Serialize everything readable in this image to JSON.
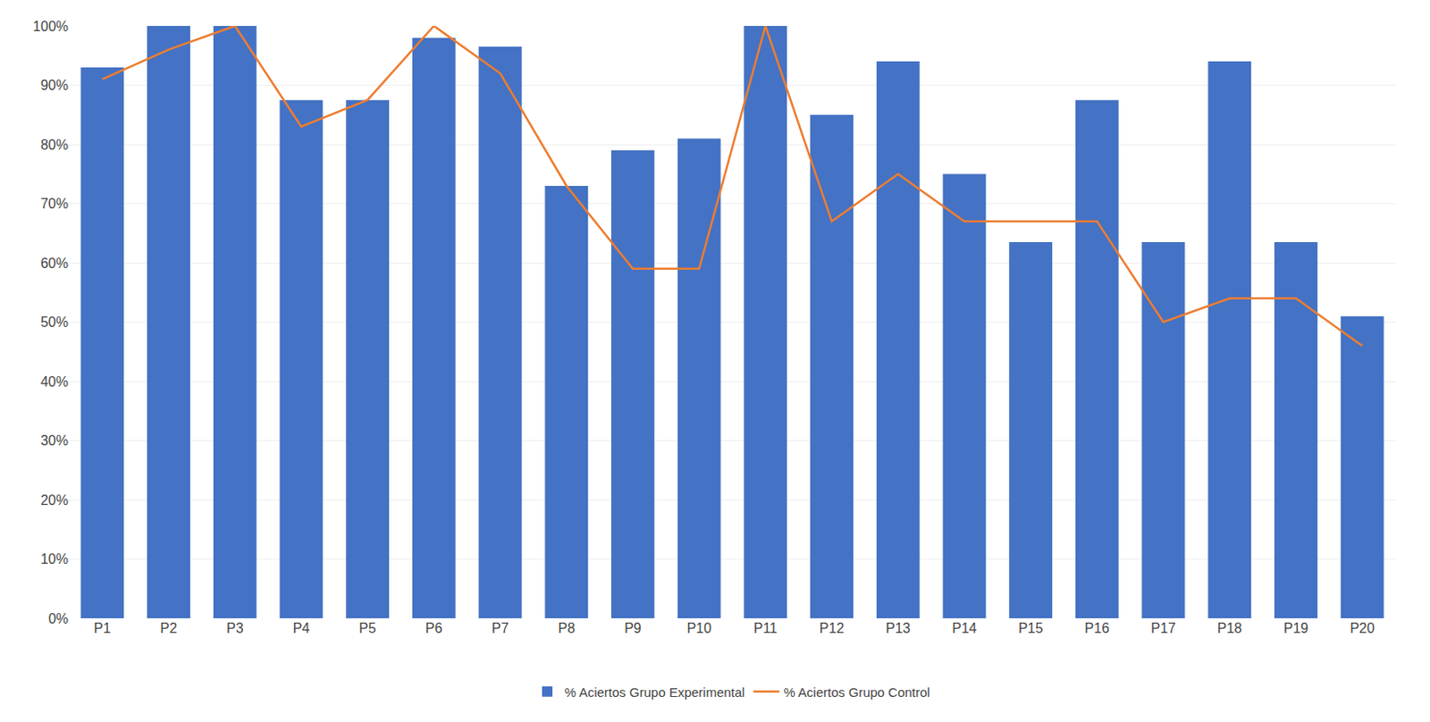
{
  "chart_data": {
    "type": "bar",
    "categories": [
      "P1",
      "P2",
      "P3",
      "P4",
      "P5",
      "P6",
      "P7",
      "P8",
      "P9",
      "P10",
      "P11",
      "P12",
      "P13",
      "P14",
      "P15",
      "P16",
      "P17",
      "P18",
      "P19",
      "P20"
    ],
    "series": [
      {
        "name": "% Aciertos Grupo Experimental",
        "type": "bar",
        "color": "#4472C4",
        "values": [
          0.93,
          1.0,
          1.0,
          0.875,
          0.875,
          0.98,
          0.965,
          0.73,
          0.79,
          0.81,
          1.0,
          0.85,
          0.94,
          0.75,
          0.635,
          0.875,
          0.635,
          0.94,
          0.635,
          0.51
        ]
      },
      {
        "name": "% Aciertos Grupo Control",
        "type": "line",
        "color": "#ED7D31",
        "values": [
          0.91,
          0.96,
          1.0,
          0.83,
          0.875,
          1.0,
          0.92,
          0.73,
          0.59,
          0.59,
          1.0,
          0.67,
          0.75,
          0.67,
          0.67,
          0.67,
          0.5,
          0.54,
          0.54,
          0.46
        ]
      }
    ],
    "ylim": [
      0,
      1.0
    ],
    "yticks": [
      {
        "value": 0.0,
        "label": "0%"
      },
      {
        "value": 0.1,
        "label": "10%"
      },
      {
        "value": 0.2,
        "label": "20%"
      },
      {
        "value": 0.3,
        "label": "30%"
      },
      {
        "value": 0.4,
        "label": "40%"
      },
      {
        "value": 0.5,
        "label": "50%"
      },
      {
        "value": 0.6,
        "label": "60%"
      },
      {
        "value": 0.7,
        "label": "70%"
      },
      {
        "value": 0.8,
        "label": "80%"
      },
      {
        "value": 0.9,
        "label": "90%"
      },
      {
        "value": 1.0,
        "label": "100%"
      }
    ],
    "grid": true,
    "legend": "bottom"
  }
}
